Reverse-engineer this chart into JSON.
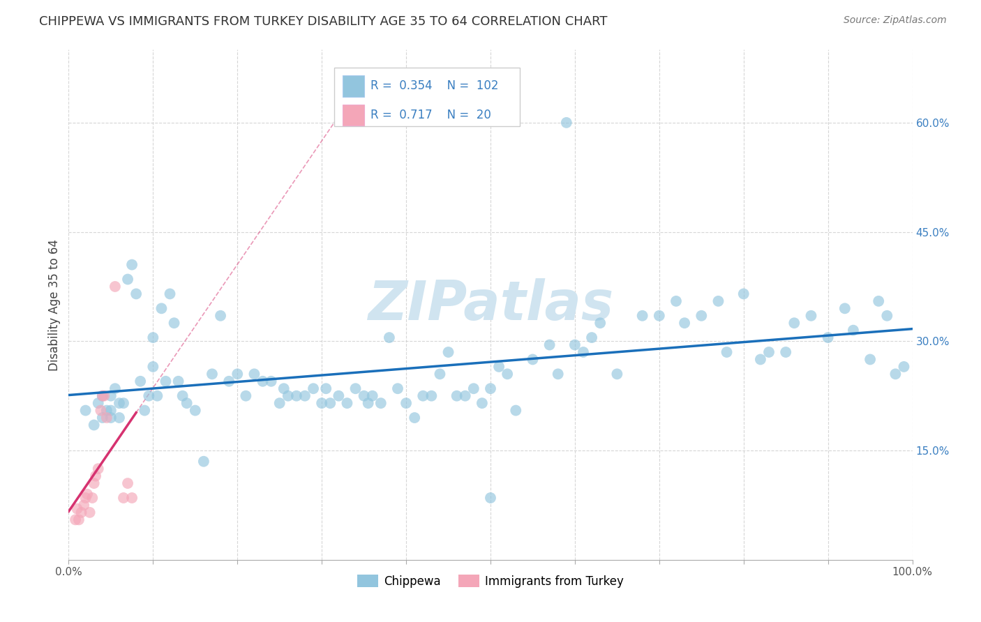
{
  "title": "CHIPPEWA VS IMMIGRANTS FROM TURKEY DISABILITY AGE 35 TO 64 CORRELATION CHART",
  "source": "Source: ZipAtlas.com",
  "ylabel": "Disability Age 35 to 64",
  "xlim": [
    0.0,
    1.0
  ],
  "ylim": [
    0.0,
    0.7
  ],
  "xticks": [
    0.0,
    0.1,
    0.2,
    0.3,
    0.4,
    0.5,
    0.6,
    0.7,
    0.8,
    0.9,
    1.0
  ],
  "xtick_labels_show": [
    "0.0%",
    "",
    "",
    "",
    "",
    "",
    "",
    "",
    "",
    "",
    "100.0%"
  ],
  "yticks": [
    0.15,
    0.3,
    0.45,
    0.6
  ],
  "ytick_labels": [
    "15.0%",
    "30.0%",
    "45.0%",
    "60.0%"
  ],
  "legend_R1": "0.354",
  "legend_N1": "102",
  "legend_R2": "0.717",
  "legend_N2": "20",
  "color_blue": "#92c5de",
  "color_pink": "#f4a6b8",
  "color_blue_line": "#1a6fba",
  "color_pink_line": "#d63270",
  "color_ytick": "#3a7fc1",
  "watermark_color": "#d0e4f0",
  "blue_scatter_x": [
    0.02,
    0.03,
    0.035,
    0.04,
    0.04,
    0.045,
    0.05,
    0.05,
    0.05,
    0.055,
    0.06,
    0.06,
    0.065,
    0.07,
    0.075,
    0.08,
    0.085,
    0.09,
    0.095,
    0.1,
    0.1,
    0.105,
    0.11,
    0.115,
    0.12,
    0.125,
    0.13,
    0.135,
    0.14,
    0.15,
    0.16,
    0.17,
    0.18,
    0.19,
    0.2,
    0.21,
    0.22,
    0.23,
    0.24,
    0.25,
    0.255,
    0.26,
    0.27,
    0.28,
    0.29,
    0.3,
    0.305,
    0.31,
    0.32,
    0.33,
    0.34,
    0.35,
    0.355,
    0.36,
    0.37,
    0.38,
    0.39,
    0.4,
    0.41,
    0.42,
    0.43,
    0.44,
    0.45,
    0.46,
    0.47,
    0.48,
    0.49,
    0.5,
    0.51,
    0.52,
    0.53,
    0.55,
    0.57,
    0.58,
    0.6,
    0.61,
    0.62,
    0.63,
    0.65,
    0.68,
    0.7,
    0.72,
    0.73,
    0.75,
    0.77,
    0.78,
    0.8,
    0.82,
    0.83,
    0.85,
    0.86,
    0.88,
    0.9,
    0.92,
    0.93,
    0.95,
    0.96,
    0.97,
    0.98,
    0.99,
    0.59,
    0.5
  ],
  "blue_scatter_y": [
    0.205,
    0.185,
    0.215,
    0.195,
    0.225,
    0.205,
    0.195,
    0.225,
    0.205,
    0.235,
    0.215,
    0.195,
    0.215,
    0.385,
    0.405,
    0.365,
    0.245,
    0.205,
    0.225,
    0.305,
    0.265,
    0.225,
    0.345,
    0.245,
    0.365,
    0.325,
    0.245,
    0.225,
    0.215,
    0.205,
    0.135,
    0.255,
    0.335,
    0.245,
    0.255,
    0.225,
    0.255,
    0.245,
    0.245,
    0.215,
    0.235,
    0.225,
    0.225,
    0.225,
    0.235,
    0.215,
    0.235,
    0.215,
    0.225,
    0.215,
    0.235,
    0.225,
    0.215,
    0.225,
    0.215,
    0.305,
    0.235,
    0.215,
    0.195,
    0.225,
    0.225,
    0.255,
    0.285,
    0.225,
    0.225,
    0.235,
    0.215,
    0.235,
    0.265,
    0.255,
    0.205,
    0.275,
    0.295,
    0.255,
    0.295,
    0.285,
    0.305,
    0.325,
    0.255,
    0.335,
    0.335,
    0.355,
    0.325,
    0.335,
    0.355,
    0.285,
    0.365,
    0.275,
    0.285,
    0.285,
    0.325,
    0.335,
    0.305,
    0.345,
    0.315,
    0.275,
    0.355,
    0.335,
    0.255,
    0.265,
    0.6,
    0.085
  ],
  "pink_scatter_x": [
    0.008,
    0.01,
    0.012,
    0.015,
    0.018,
    0.02,
    0.022,
    0.025,
    0.028,
    0.03,
    0.032,
    0.035,
    0.038,
    0.04,
    0.042,
    0.045,
    0.055,
    0.065,
    0.07,
    0.075
  ],
  "pink_scatter_y": [
    0.055,
    0.07,
    0.055,
    0.065,
    0.075,
    0.085,
    0.09,
    0.065,
    0.085,
    0.105,
    0.115,
    0.125,
    0.205,
    0.225,
    0.225,
    0.195,
    0.375,
    0.085,
    0.105,
    0.085
  ]
}
